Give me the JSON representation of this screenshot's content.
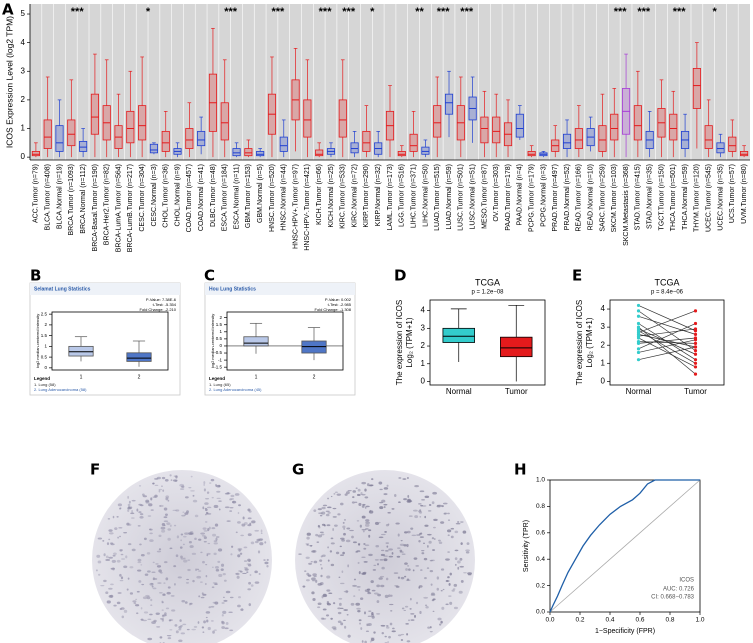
{
  "panel_labels": [
    "A",
    "B",
    "C",
    "D",
    "E",
    "F",
    "G",
    "H"
  ],
  "chart_data": [
    {
      "type": "box",
      "ylabel": "ICOS Expression Level (log2 TPM)",
      "categories": [
        "ACC.Tumor (n=79)",
        "BLCA.Tumor (n=408)",
        "BLCA.Normal (n=19)",
        "BRCA.Tumor (n=1093)",
        "BRCA.Normal (n=112)",
        "BRCA-Basal.Tumor (n=190)",
        "BRCA-Her2.Tumor (n=82)",
        "BRCA-LumA.Tumor (n=564)",
        "BRCA-LumB.Tumor (n=217)",
        "CESC.Tumor (n=304)",
        "CESC.Normal (n=3)",
        "CHOL.Tumor (n=36)",
        "CHOL.Normal (n=9)",
        "COAD.Tumor (n=457)",
        "COAD.Normal (n=41)",
        "DLBC.Tumor (n=48)",
        "ESCA.Tumor (n=184)",
        "ESCA.Normal (n=11)",
        "GBM.Tumor (n=153)",
        "GBM.Normal (n=5)",
        "HNSC.Tumor (n=520)",
        "HNSC.Normal (n=44)",
        "HNSC-HPV+.Tumor (n=97)",
        "HNSC-HPV-.Tumor (n=421)",
        "KICH.Tumor (n=66)",
        "KICH.Normal (n=25)",
        "KIRC.Tumor (n=533)",
        "KIRC.Normal (n=72)",
        "KIRP.Tumor (n=290)",
        "KIRP.Normal (n=32)",
        "LAML.Tumor (n=173)",
        "LGG.Tumor (n=516)",
        "LIHC.Tumor (n=371)",
        "LIHC.Normal (n=50)",
        "LUAD.Tumor (n=515)",
        "LUAD.Normal (n=59)",
        "LUSC.Tumor (n=501)",
        "LUSC.Normal (n=51)",
        "MESO.Tumor (n=87)",
        "OV.Tumor (n=303)",
        "PAAD.Tumor (n=178)",
        "PAAD.Normal (n=4)",
        "PCPG.Tumor (n=179)",
        "PCPG.Normal (n=3)",
        "PRAD.Tumor (n=497)",
        "PRAD.Normal (n=52)",
        "READ.Tumor (n=166)",
        "READ.Normal (n=10)",
        "SARC.Tumor (n=259)",
        "SKCM.Tumor (n=103)",
        "SKCM.Metastasis (n=368)",
        "STAD.Tumor (n=415)",
        "STAD.Normal (n=35)",
        "TGCT.Tumor (n=150)",
        "THCA.Tumor (n=501)",
        "THCA.Normal (n=59)",
        "THYM.Tumor (n=120)",
        "UCEC.Tumor (n=545)",
        "UCEC.Normal (n=35)",
        "UCS.Tumor (n=57)",
        "UVM.Tumor (n=80)"
      ],
      "q1": [
        0.05,
        0.3,
        0.2,
        0.4,
        0.2,
        0.8,
        0.6,
        0.3,
        0.5,
        0.6,
        0.15,
        0.2,
        0.1,
        0.3,
        0.4,
        0.9,
        0.6,
        0.05,
        0.05,
        0.05,
        0.8,
        0.2,
        1.3,
        0.7,
        0.05,
        0.1,
        0.7,
        0.15,
        0.2,
        0.1,
        0.6,
        0.05,
        0.2,
        0.1,
        0.7,
        1.5,
        0.6,
        1.3,
        0.5,
        0.5,
        0.4,
        0.7,
        0.05,
        0.05,
        0.2,
        0.3,
        0.3,
        0.4,
        0.2,
        0.6,
        0.8,
        0.6,
        0.3,
        0.7,
        0.6,
        0.3,
        1.7,
        0.3,
        0.15,
        0.2,
        0.05
      ],
      "median": [
        0.1,
        0.7,
        0.5,
        0.8,
        0.35,
        1.4,
        1.2,
        0.7,
        1.0,
        1.1,
        0.25,
        0.5,
        0.2,
        0.6,
        0.6,
        1.9,
        1.2,
        0.15,
        0.15,
        0.1,
        1.5,
        0.4,
        2.0,
        1.3,
        0.1,
        0.2,
        1.3,
        0.3,
        0.5,
        0.3,
        1.1,
        0.1,
        0.4,
        0.2,
        1.2,
        1.9,
        1.2,
        1.7,
        1.0,
        0.9,
        0.8,
        1.0,
        0.1,
        0.1,
        0.4,
        0.5,
        0.6,
        0.7,
        0.6,
        1.0,
        1.6,
        1.1,
        0.6,
        1.2,
        1.0,
        0.6,
        2.5,
        0.6,
        0.3,
        0.4,
        0.1
      ],
      "q3": [
        0.2,
        1.3,
        1.1,
        1.3,
        0.55,
        2.2,
        1.8,
        1.1,
        1.6,
        1.8,
        0.45,
        0.9,
        0.3,
        1.0,
        0.9,
        2.9,
        1.9,
        0.3,
        0.3,
        0.2,
        2.2,
        0.7,
        2.7,
        2.0,
        0.25,
        0.3,
        2.0,
        0.5,
        0.9,
        0.5,
        1.6,
        0.2,
        0.8,
        0.35,
        1.8,
        2.2,
        1.8,
        2.1,
        1.4,
        1.4,
        1.2,
        1.5,
        0.2,
        0.15,
        0.6,
        0.8,
        1.0,
        1.0,
        1.1,
        1.5,
        2.4,
        1.8,
        0.9,
        1.7,
        1.5,
        0.9,
        3.1,
        1.1,
        0.5,
        0.7,
        0.2
      ],
      "whisker_low": [
        0,
        0,
        0,
        0,
        0,
        0,
        0,
        0,
        0,
        0,
        0.1,
        0,
        0,
        0,
        0.1,
        0,
        0,
        0,
        0,
        0,
        0,
        0,
        0.2,
        0,
        0,
        0,
        0,
        0,
        0,
        0,
        0,
        0,
        0,
        0,
        0,
        0.7,
        0,
        0.5,
        0,
        0,
        0,
        0.6,
        0,
        0,
        0,
        0,
        0,
        0.2,
        0,
        0,
        0,
        0,
        0,
        0,
        0,
        0,
        0.3,
        0,
        0,
        0,
        0
      ],
      "whisker_high": [
        0.5,
        2.8,
        2.0,
        2.7,
        1.0,
        3.6,
        3.4,
        2.2,
        3.0,
        3.5,
        0.5,
        1.6,
        0.5,
        1.9,
        1.4,
        4.5,
        3.4,
        0.5,
        0.6,
        0.3,
        3.5,
        1.3,
        3.8,
        3.4,
        0.5,
        0.5,
        3.4,
        0.9,
        1.8,
        0.9,
        2.5,
        0.4,
        1.6,
        0.6,
        2.8,
        3.0,
        2.8,
        2.8,
        2.3,
        2.2,
        2.0,
        1.8,
        0.4,
        0.2,
        1.1,
        1.3,
        1.8,
        1.4,
        2.2,
        2.4,
        3.6,
        3.0,
        1.6,
        2.7,
        2.3,
        1.5,
        4.0,
        2.0,
        0.8,
        1.3,
        0.4
      ],
      "box_colors": [
        "#e41a1c",
        "#e41a1c",
        "#1f3fd1",
        "#e41a1c",
        "#1f3fd1",
        "#e41a1c",
        "#e41a1c",
        "#e41a1c",
        "#e41a1c",
        "#e41a1c",
        "#1f3fd1",
        "#e41a1c",
        "#1f3fd1",
        "#e41a1c",
        "#1f3fd1",
        "#e41a1c",
        "#e41a1c",
        "#1f3fd1",
        "#e41a1c",
        "#1f3fd1",
        "#e41a1c",
        "#1f3fd1",
        "#e41a1c",
        "#e41a1c",
        "#e41a1c",
        "#1f3fd1",
        "#e41a1c",
        "#1f3fd1",
        "#e41a1c",
        "#1f3fd1",
        "#e41a1c",
        "#e41a1c",
        "#e41a1c",
        "#1f3fd1",
        "#e41a1c",
        "#1f3fd1",
        "#e41a1c",
        "#1f3fd1",
        "#e41a1c",
        "#e41a1c",
        "#e41a1c",
        "#1f3fd1",
        "#e41a1c",
        "#1f3fd1",
        "#e41a1c",
        "#1f3fd1",
        "#e41a1c",
        "#1f3fd1",
        "#e41a1c",
        "#e41a1c",
        "#a63cd6",
        "#e41a1c",
        "#1f3fd1",
        "#e41a1c",
        "#e41a1c",
        "#1f3fd1",
        "#e41a1c",
        "#e41a1c",
        "#1f3fd1",
        "#e41a1c",
        "#e41a1c"
      ],
      "significance": [
        null,
        null,
        null,
        null,
        "***",
        null,
        null,
        null,
        null,
        null,
        "*",
        null,
        null,
        null,
        null,
        null,
        null,
        "***",
        null,
        null,
        null,
        "***",
        null,
        null,
        null,
        "***",
        null,
        "***",
        null,
        "*",
        null,
        null,
        null,
        "**",
        null,
        "***",
        null,
        "***",
        null,
        null,
        null,
        null,
        null,
        null,
        null,
        null,
        null,
        null,
        null,
        null,
        "***",
        null,
        "***",
        null,
        null,
        "***",
        null,
        null,
        "*",
        null,
        null
      ],
      "ylim": [
        -0.1,
        5.35
      ],
      "yticks": [
        0,
        1,
        2,
        3,
        4,
        5
      ]
    },
    {
      "type": "box",
      "title": "Selamat Lung Statistics",
      "stats": [
        "P-Value: 7.38E-6",
        "t-Test: -5.354",
        "Fold Change: -2.210"
      ],
      "ylabel": "log2 median-centered intensity",
      "categories": [
        "1",
        "2"
      ],
      "q1": [
        0.55,
        0.3
      ],
      "median": [
        0.75,
        0.45
      ],
      "q3": [
        1.0,
        0.7
      ],
      "whisker_low": [
        0.3,
        0.05
      ],
      "whisker_high": [
        1.45,
        1.25
      ],
      "box_colors": [
        "#b9c8e8",
        "#4f76c6"
      ],
      "ylim": [
        -0.1,
        2.6
      ],
      "yticks": [
        0,
        0.5,
        1,
        1.5,
        2,
        2.5
      ],
      "legend_title": "Legend",
      "legend": [
        "1. Lung (58)",
        "2. Lung Adenocarcinoma (58)"
      ]
    },
    {
      "type": "box",
      "title": "Hou Lung Statistics",
      "stats": [
        "P-Value: 0.002",
        "t-Test: -2.985",
        "Fold Change: -1.308"
      ],
      "ylabel": "log2 median-centered intensity",
      "categories": [
        "1",
        "2"
      ],
      "q1": [
        0.0,
        -0.5
      ],
      "median": [
        0.2,
        -0.05
      ],
      "q3": [
        0.65,
        0.35
      ],
      "whisker_low": [
        -0.55,
        -1.0
      ],
      "whisker_high": [
        1.6,
        1.3
      ],
      "box_colors": [
        "#b9c8e8",
        "#4f76c6"
      ],
      "ylim": [
        -1.7,
        2.4
      ],
      "yticks": [
        -1.5,
        -1,
        -0.5,
        0,
        0.5,
        1,
        1.5,
        2
      ],
      "reference_line": 0,
      "legend_title": "Legend",
      "legend": [
        "1. Lung (65)",
        "2. Lung Adenocarcinoma (45)"
      ]
    },
    {
      "type": "box",
      "title": "TCGA",
      "p_label": "p = 1.2e−08",
      "ylabel": [
        "The expression of ICOS",
        "Log₂ (TPM+1)"
      ],
      "categories": [
        "Normal",
        "Tumor"
      ],
      "q1": [
        2.2,
        1.4
      ],
      "median": [
        2.55,
        1.9
      ],
      "q3": [
        3.0,
        2.5
      ],
      "whisker_low": [
        1.1,
        0.0
      ],
      "whisker_high": [
        4.1,
        4.3
      ],
      "box_colors": [
        "#33cccc",
        "#e41a1c"
      ],
      "ylim": [
        -0.2,
        4.6
      ],
      "yticks": [
        0,
        1,
        2,
        3,
        4
      ]
    },
    {
      "type": "paired-line",
      "title": "TCGA",
      "p_label": "p = 8.4e−06",
      "ylabel": [
        "The expression of ICOS",
        "Log₂ (TPM+1)"
      ],
      "categories": [
        "Normal",
        "Tumor"
      ],
      "point_colors": [
        "#33cccc",
        "#e41a1c"
      ],
      "line_color": "#333333",
      "values": [
        [
          2.6,
          1.9
        ],
        [
          3.2,
          1.2
        ],
        [
          2.1,
          2.4
        ],
        [
          4.2,
          2.8
        ],
        [
          1.8,
          3.2
        ],
        [
          2.9,
          1.5
        ],
        [
          2.4,
          0.8
        ],
        [
          3.6,
          2.6
        ],
        [
          1.2,
          1.9
        ],
        [
          2.7,
          3.9
        ],
        [
          3.0,
          0.4
        ],
        [
          2.2,
          2.1
        ],
        [
          3.9,
          1.7
        ],
        [
          2.5,
          2.9
        ],
        [
          1.6,
          2.3
        ],
        [
          2.8,
          1.0
        ]
      ],
      "ylim": [
        -0.2,
        4.5
      ],
      "yticks": [
        0,
        1,
        2,
        3,
        4
      ]
    },
    {
      "type": "line",
      "xlabel": "1−Specificity (FPR)",
      "ylabel": "Sensitivity (TPR)",
      "x": [
        0,
        0.02,
        0.05,
        0.08,
        0.12,
        0.17,
        0.22,
        0.27,
        0.33,
        0.4,
        0.47,
        0.55,
        0.6,
        0.65,
        0.7,
        1
      ],
      "series": [
        {
          "name": "ICOS",
          "color": "#1f5fa8",
          "values": [
            0,
            0.05,
            0.12,
            0.2,
            0.3,
            0.4,
            0.5,
            0.58,
            0.66,
            0.74,
            0.8,
            0.85,
            0.9,
            0.97,
            1.0,
            1.0
          ]
        }
      ],
      "annotations": [
        "AUC: 0.726",
        "CI: 0.668−0.783"
      ],
      "xlim": [
        0,
        1
      ],
      "ylim": [
        0,
        1
      ],
      "xticks": [
        {
          "value": 0,
          "label": "0.0"
        },
        0.2,
        0.4,
        0.6,
        0.8,
        {
          "value": 1,
          "label": "1.0"
        }
      ],
      "yticks": [
        {
          "value": 0,
          "label": "0.0"
        },
        0.2,
        0.4,
        0.6,
        0.8,
        {
          "value": 1,
          "label": "1.0"
        }
      ]
    }
  ]
}
